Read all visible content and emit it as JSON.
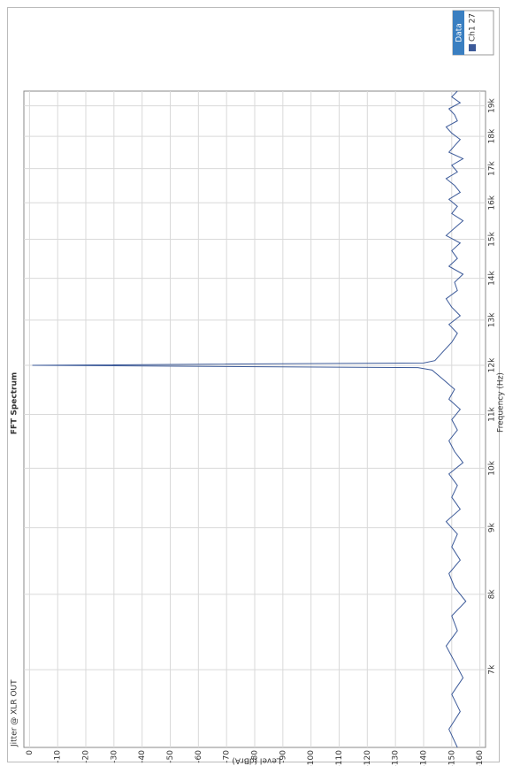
{
  "chart_data": {
    "type": "line",
    "title": "FFT Spectrum",
    "subtitle": "Jitter @ XLR OUT",
    "x_label": "Frequency (Hz)",
    "y_label": "Level (dBrA)",
    "legend_title": "Data",
    "xscale": "log",
    "grid": true,
    "legend": "right",
    "xlim": [
      6100,
      19500
    ],
    "ylim": [
      -162,
      2
    ],
    "xticks": [
      {
        "value": 7000,
        "label": "7k"
      },
      {
        "value": 8000,
        "label": "8k"
      },
      {
        "value": 9000,
        "label": "9k"
      },
      {
        "value": 10000,
        "label": "10k"
      },
      {
        "value": 11000,
        "label": "11k"
      },
      {
        "value": 12000,
        "label": "12k"
      },
      {
        "value": 13000,
        "label": "13k"
      },
      {
        "value": 14000,
        "label": "14k"
      },
      {
        "value": 15000,
        "label": "15k"
      },
      {
        "value": 16000,
        "label": "16k"
      },
      {
        "value": 17000,
        "label": "17k"
      },
      {
        "value": 18000,
        "label": "18k"
      },
      {
        "value": 19000,
        "label": "19k"
      }
    ],
    "yticks": [
      0,
      -10,
      -20,
      -30,
      -40,
      -50,
      -60,
      -70,
      -80,
      -90,
      -100,
      -110,
      -120,
      -130,
      -140,
      -150,
      -160
    ],
    "x": [
      6100,
      6300,
      6500,
      6700,
      6900,
      7100,
      7300,
      7500,
      7700,
      7900,
      8100,
      8300,
      8500,
      8700,
      8900,
      9100,
      9300,
      9500,
      9700,
      9900,
      10100,
      10300,
      10500,
      10700,
      10900,
      11100,
      11300,
      11500,
      11700,
      11900,
      11950,
      12000,
      12050,
      12100,
      12300,
      12500,
      12700,
      12900,
      13100,
      13300,
      13500,
      13700,
      13900,
      14100,
      14300,
      14500,
      14700,
      14900,
      15100,
      15300,
      15500,
      15700,
      15900,
      16100,
      16300,
      16500,
      16700,
      16900,
      17100,
      17300,
      17500,
      17700,
      17900,
      18100,
      18300,
      18500,
      18700,
      18900,
      19100,
      19300,
      19500
    ],
    "series": [
      {
        "name": "Ch1 27",
        "color": "#3c5a99",
        "values": [
          -152,
          -149,
          -153,
          -150,
          -154,
          -151,
          -148,
          -152,
          -150,
          -155,
          -151,
          -149,
          -153,
          -150,
          -152,
          -148,
          -153,
          -150,
          -152,
          -149,
          -154,
          -151,
          -149,
          -152,
          -150,
          -153,
          -149,
          -151,
          -147,
          -143,
          -138,
          -1,
          -140,
          -144,
          -147,
          -150,
          -152,
          -149,
          -153,
          -150,
          -148,
          -152,
          -151,
          -154,
          -149,
          -152,
          -150,
          -153,
          -148,
          -151,
          -154,
          -150,
          -152,
          -149,
          -153,
          -151,
          -148,
          -152,
          -150,
          -154,
          -149,
          -151,
          -153,
          -150,
          -148,
          -152,
          -151,
          -149,
          -153,
          -150,
          -152
        ]
      }
    ]
  }
}
